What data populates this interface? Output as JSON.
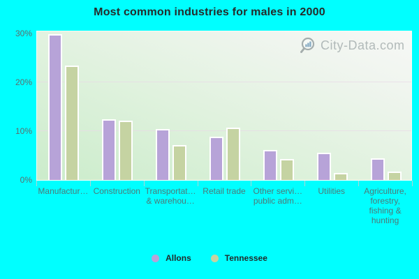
{
  "title": "Most common industries for males in 2000",
  "watermark": {
    "text": "City-Data.com"
  },
  "colors": {
    "background": "#00ffff",
    "plot_gradient_bottom_left": "#cbeccb",
    "plot_gradient_top_right": "#f7f8f6",
    "gridline": "#e7d9e6",
    "y_label_text": "#5c6d6d",
    "x_label_text": "#4e7878",
    "title_text": "#242b2b",
    "allons_bar": "#b7a3d8",
    "tennessee_bar": "#c5d3a2"
  },
  "y_axis": {
    "tick_labels": [
      "0%",
      "10%",
      "20%",
      "30%"
    ],
    "tick_values": [
      0,
      10,
      20,
      30
    ],
    "gridline_values": [
      10,
      20
    ]
  },
  "chart_data": {
    "type": "bar",
    "title": "Most common industries for males in 2000",
    "categories": [
      "Manufactur…",
      "Construction",
      "Transportat… & warehou…",
      "Retail trade",
      "Other servi… public adm…",
      "Utilities",
      "Agriculture, forestry, fishing & hunting"
    ],
    "category_label_lines": [
      [
        "Manufactur…"
      ],
      [
        "Construction"
      ],
      [
        "Transportat…",
        "& warehou…"
      ],
      [
        "Retail trade"
      ],
      [
        "Other servi…",
        "public adm…"
      ],
      [
        "Utilities"
      ],
      [
        "Agriculture,",
        "forestry,",
        "fishing &",
        "hunting"
      ]
    ],
    "series": [
      {
        "name": "Allons",
        "color": "#b7a3d8",
        "values": [
          29.9,
          12.4,
          10.4,
          8.8,
          6.2,
          5.5,
          4.5
        ]
      },
      {
        "name": "Tennessee",
        "color": "#c5d3a2",
        "values": [
          23.4,
          12.2,
          7.1,
          10.7,
          4.3,
          1.5,
          1.7
        ]
      }
    ],
    "xlabel": "",
    "ylabel": "",
    "ylim": [
      0,
      30.7
    ],
    "grid": "horizontal",
    "legend_position": "bottom"
  }
}
